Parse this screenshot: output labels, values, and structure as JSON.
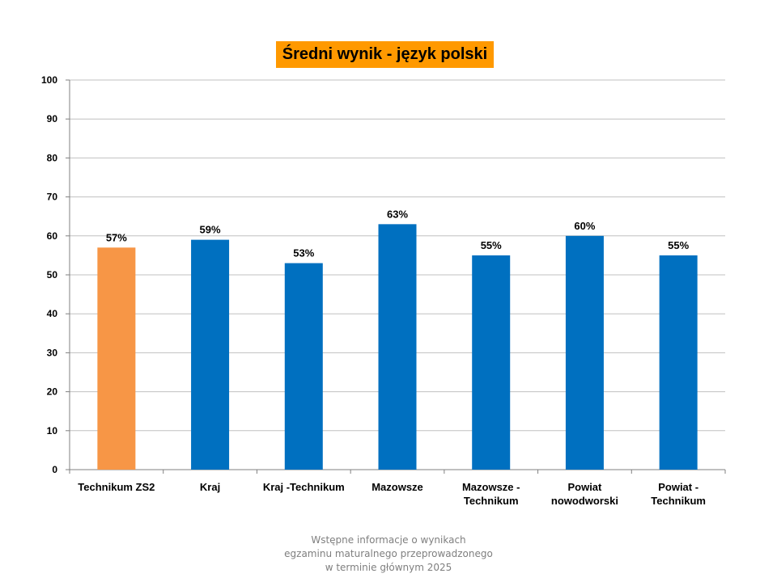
{
  "chart_data": {
    "type": "bar",
    "title": "Średni wynik - język polski",
    "categories": [
      [
        "Technikum ZS2"
      ],
      [
        "Kraj"
      ],
      [
        "Kraj -Technikum"
      ],
      [
        "Mazowsze"
      ],
      [
        "Mazowsze -",
        "Technikum"
      ],
      [
        "Powiat",
        "nowodworski"
      ],
      [
        "Powiat -",
        "Technikum"
      ]
    ],
    "values": [
      57,
      59,
      53,
      63,
      55,
      60,
      55
    ],
    "data_labels": [
      "57%",
      "59%",
      "53%",
      "63%",
      "55%",
      "60%",
      "55%"
    ],
    "bar_colors": [
      "#f79646",
      "#0070c0",
      "#0070c0",
      "#0070c0",
      "#0070c0",
      "#0070c0",
      "#0070c0"
    ],
    "ylim": [
      0,
      100
    ],
    "yticks": [
      "0",
      "10",
      "20",
      "30",
      "40",
      "50",
      "60",
      "70",
      "80",
      "90",
      "100"
    ],
    "grid": true,
    "xlabel": "",
    "ylabel": ""
  },
  "caption": {
    "lines": [
      "Wstępne informacje o wynikach",
      "egzaminu maturalnego przeprowadzonego",
      "w terminie głównym 2025"
    ]
  },
  "colors": {
    "title_background": "#ff9900",
    "highlight_bar": "#f79646",
    "bar": "#0070c0",
    "gridline": "#c0c0c0"
  }
}
